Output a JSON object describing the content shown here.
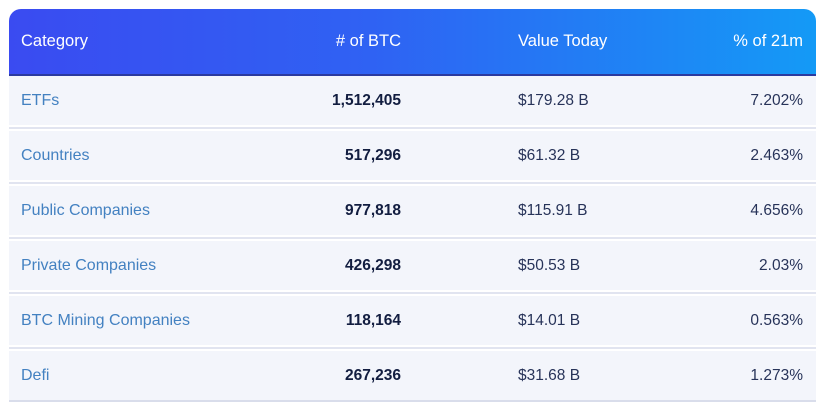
{
  "table": {
    "columns": [
      {
        "label": "Category"
      },
      {
        "label": "# of BTC"
      },
      {
        "label": "Value Today"
      },
      {
        "label": "% of 21m"
      }
    ],
    "rows": [
      {
        "category": "ETFs",
        "btc": "1,512,405",
        "value": "$179.28 B",
        "pct": "7.202%"
      },
      {
        "category": "Countries",
        "btc": "517,296",
        "value": "$61.32 B",
        "pct": "2.463%"
      },
      {
        "category": "Public Companies",
        "btc": "977,818",
        "value": "$115.91 B",
        "pct": "4.656%"
      },
      {
        "category": "Private Companies",
        "btc": "426,298",
        "value": "$50.53 B",
        "pct": "2.03%"
      },
      {
        "category": "BTC Mining Companies",
        "btc": "118,164",
        "value": "$14.01 B",
        "pct": "0.563%"
      },
      {
        "category": "Defi",
        "btc": "267,236",
        "value": "$31.68 B",
        "pct": "1.273%"
      }
    ]
  },
  "colors": {
    "header_gradient_start": "#3a4bf1",
    "header_gradient_end": "#149af6",
    "header_text": "#ffffff",
    "header_bottom_edge": "#2b3a9f",
    "row_background": "#f3f5fb",
    "row_separator": "#e1e4f0",
    "category_link": "#4381c1",
    "btc_number": "#121d40",
    "value_text": "#273359"
  }
}
